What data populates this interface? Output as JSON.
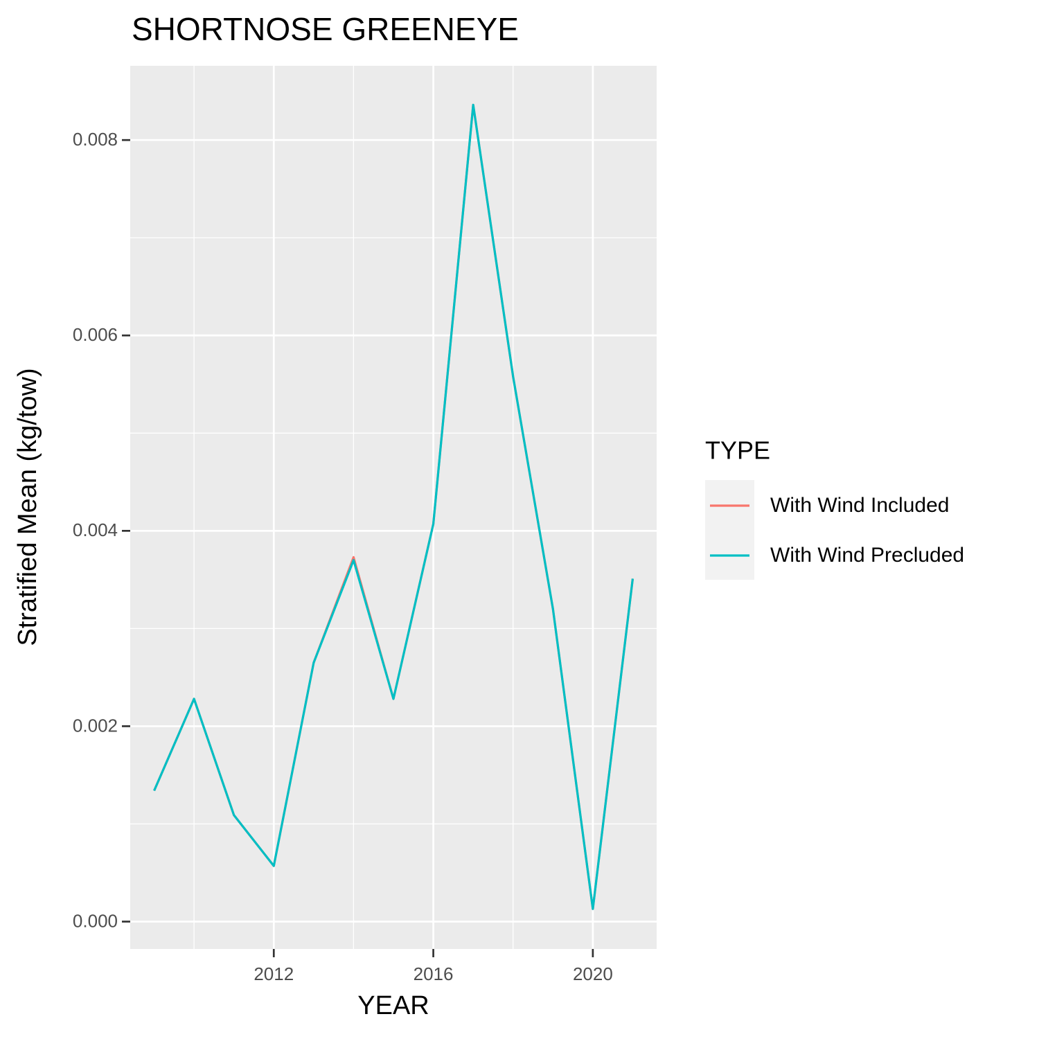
{
  "chart_data": {
    "type": "line",
    "title": "SHORTNOSE GREENEYE",
    "x_label": "YEAR",
    "y_label": "Stratified Mean (kg/tow)",
    "x": [
      2009,
      2010,
      2011,
      2012,
      2013,
      2014,
      2015,
      2016,
      2017,
      2018,
      2019,
      2020,
      2021
    ],
    "series": [
      {
        "name": "With Wind Included",
        "color": "#F8766D",
        "values": [
          0.00134,
          0.00228,
          0.00109,
          0.00057,
          0.00265,
          0.00373,
          0.00228,
          0.00407,
          0.00836,
          0.00558,
          0.0032,
          0.00013,
          0.00351
        ]
      },
      {
        "name": "With Wind Precluded",
        "color": "#00BFC4",
        "values": [
          0.00134,
          0.00228,
          0.00109,
          0.00057,
          0.00265,
          0.0037,
          0.00228,
          0.00407,
          0.00836,
          0.00558,
          0.0032,
          0.00013,
          0.00351
        ]
      }
    ],
    "xlim": [
      2008.4,
      2021.6
    ],
    "ylim": [
      -0.00028,
      0.00876
    ],
    "xticks": [
      2012,
      2016,
      2020
    ],
    "x_minor_ticks": [
      2010,
      2014,
      2018
    ],
    "yticks": [
      {
        "value": 0,
        "label": "0.000"
      },
      {
        "value": 0.002,
        "label": "0.002"
      },
      {
        "value": 0.004,
        "label": "0.004"
      },
      {
        "value": 0.006,
        "label": "0.006"
      },
      {
        "value": 0.008,
        "label": "0.008"
      }
    ],
    "y_minor_ticks": [
      0.001,
      0.003,
      0.005,
      0.007
    ],
    "grid": true,
    "legend_title": "TYPE",
    "legend_position": "right"
  }
}
